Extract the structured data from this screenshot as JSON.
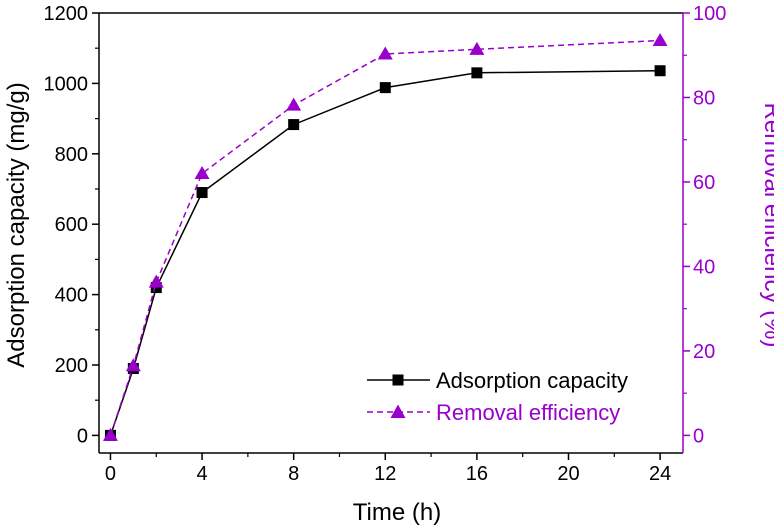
{
  "chart_data": {
    "type": "line",
    "xlabel": "Time (h)",
    "ylabel": "Adsorption capacity (mg/g)",
    "y2label": "Removal efficiency (%)",
    "xlim": [
      -0.5,
      25
    ],
    "ylim": [
      -50,
      1200
    ],
    "y2lim": [
      -4.1667,
      100
    ],
    "xticks": [
      0,
      4,
      8,
      12,
      16,
      20,
      24
    ],
    "yticks": [
      0,
      200,
      400,
      600,
      800,
      1000,
      1200
    ],
    "y2ticks": [
      0,
      20,
      40,
      60,
      80,
      100
    ],
    "legend": "bottom-right",
    "grid": false,
    "series": [
      {
        "name": "Adsorption capacity",
        "axis": "left",
        "color": "#000000",
        "line_style": "solid",
        "marker": "square",
        "x": [
          0,
          1,
          2,
          4,
          8,
          12,
          16,
          24
        ],
        "y": [
          0,
          190,
          420,
          690,
          883,
          988,
          1030,
          1036
        ]
      },
      {
        "name": "Removal efficiency",
        "axis": "right",
        "color": "#9900cc",
        "line_style": "dashed",
        "marker": "triangle",
        "x": [
          0,
          1,
          2,
          4,
          8,
          12,
          16,
          24
        ],
        "y": [
          0,
          16.5,
          36.3,
          62,
          78.2,
          90.3,
          91.4,
          93.5
        ]
      }
    ]
  }
}
